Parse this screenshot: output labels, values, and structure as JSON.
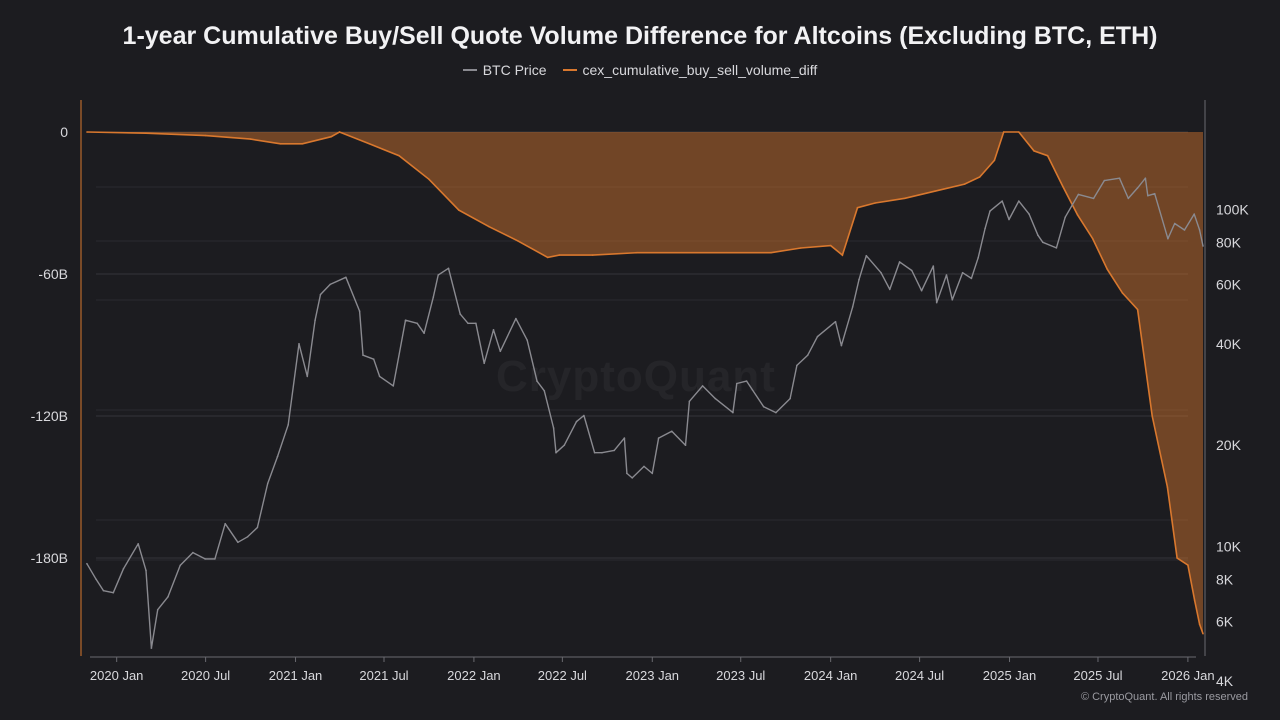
{
  "chart_data": {
    "type": "line",
    "title": "1-year Cumulative Buy/Sell Quote Volume Difference for Altcoins (Excluding BTC, ETH)",
    "legend_position": "top-center",
    "grid": true,
    "x_tick_labels": [
      "2020 Jan",
      "2020 Jul",
      "2021 Jan",
      "2021 Jul",
      "2022 Jan",
      "2022 Jul",
      "2023 Jan",
      "2023 Jul",
      "2024 Jan",
      "2024 Jul",
      "2025 Jan",
      "2025 Jul",
      "2026 Jan"
    ],
    "xlim": [
      "2019-10-20",
      "2026-02-05"
    ],
    "y_left": {
      "ylim": [
        -210,
        6
      ],
      "ticks": [
        0,
        -60,
        -120,
        -180
      ],
      "tick_labels": [
        "0",
        "-60B",
        "-120B",
        "-180B"
      ]
    },
    "y_right": {
      "scale": "log",
      "ylim": [
        4000,
        170000
      ],
      "ticks": [
        100000,
        80000,
        60000,
        40000,
        20000,
        10000,
        8000,
        6000,
        4000
      ],
      "tick_labels": [
        "100K",
        "80K",
        "60K",
        "40K",
        "20K",
        "10K",
        "8K",
        "6K",
        "4K"
      ]
    },
    "series": [
      {
        "name": "BTC Price",
        "color": "#8a8a90",
        "axis": "right",
        "x": [
          "2019-11-01",
          "2019-11-20",
          "2019-12-05",
          "2019-12-25",
          "2020-01-15",
          "2020-02-14",
          "2020-03-01",
          "2020-03-12",
          "2020-03-25",
          "2020-04-15",
          "2020-05-10",
          "2020-06-05",
          "2020-06-30",
          "2020-07-20",
          "2020-08-10",
          "2020-09-05",
          "2020-09-25",
          "2020-10-15",
          "2020-11-05",
          "2020-11-25",
          "2020-12-17",
          "2021-01-08",
          "2021-01-25",
          "2021-02-10",
          "2021-02-21",
          "2021-03-13",
          "2021-04-14",
          "2021-05-12",
          "2021-05-19",
          "2021-06-10",
          "2021-06-22",
          "2021-07-20",
          "2021-08-14",
          "2021-09-07",
          "2021-09-21",
          "2021-10-10",
          "2021-10-20",
          "2021-11-10",
          "2021-12-04",
          "2021-12-20",
          "2022-01-05",
          "2022-01-22",
          "2022-02-10",
          "2022-02-24",
          "2022-03-28",
          "2022-04-20",
          "2022-05-10",
          "2022-05-25",
          "2022-06-13",
          "2022-06-18",
          "2022-07-05",
          "2022-07-30",
          "2022-08-14",
          "2022-09-05",
          "2022-09-20",
          "2022-10-15",
          "2022-11-05",
          "2022-11-10",
          "2022-11-21",
          "2022-12-15",
          "2023-01-01",
          "2023-01-14",
          "2023-02-10",
          "2023-03-10",
          "2023-03-18",
          "2023-04-14",
          "2023-05-10",
          "2023-06-15",
          "2023-06-23",
          "2023-07-13",
          "2023-08-17",
          "2023-09-11",
          "2023-10-10",
          "2023-10-24",
          "2023-11-15",
          "2023-12-05",
          "2024-01-11",
          "2024-01-23",
          "2024-02-15",
          "2024-02-28",
          "2024-03-14",
          "2024-04-13",
          "2024-05-01",
          "2024-05-21",
          "2024-06-15",
          "2024-07-05",
          "2024-07-29",
          "2024-08-05",
          "2024-08-25",
          "2024-09-06",
          "2024-09-27",
          "2024-10-15",
          "2024-10-29",
          "2024-11-12",
          "2024-11-22",
          "2024-12-17",
          "2024-12-31",
          "2025-01-20",
          "2025-02-10",
          "2025-02-28",
          "2025-03-10",
          "2025-04-07",
          "2025-04-25",
          "2025-05-22",
          "2025-06-22",
          "2025-07-14",
          "2025-08-14",
          "2025-09-01",
          "2025-09-20",
          "2025-10-06",
          "2025-10-11",
          "2025-10-25",
          "2025-11-21",
          "2025-12-05",
          "2025-12-25",
          "2026-01-14",
          "2026-01-25",
          "2026-02-01"
        ],
        "values": [
          8900,
          8000,
          7400,
          7300,
          8600,
          10200,
          8500,
          5000,
          6500,
          7100,
          8800,
          9600,
          9200,
          9200,
          11700,
          10300,
          10700,
          11400,
          15400,
          18500,
          23000,
          40000,
          32000,
          47000,
          56000,
          60000,
          63000,
          50000,
          37000,
          36000,
          32000,
          30000,
          47000,
          46000,
          43000,
          55000,
          64000,
          67000,
          49000,
          46000,
          46000,
          35000,
          44000,
          38000,
          47500,
          41000,
          31000,
          29000,
          22500,
          19000,
          20000,
          23500,
          24500,
          19000,
          19000,
          19300,
          21000,
          16500,
          16000,
          17300,
          16500,
          21000,
          22000,
          20000,
          27000,
          30000,
          27500,
          25000,
          30500,
          31000,
          26000,
          25000,
          27500,
          34500,
          37000,
          42000,
          46500,
          39500,
          51500,
          62000,
          73000,
          65000,
          58000,
          70000,
          66000,
          57500,
          68000,
          53000,
          64000,
          54000,
          65000,
          62500,
          72000,
          88000,
          99000,
          106000,
          93500,
          106000,
          97000,
          84000,
          80000,
          77000,
          95000,
          111000,
          108000,
          122000,
          124000,
          108000,
          116000,
          124000,
          110000,
          111500,
          82000,
          91000,
          87000,
          97000,
          87000,
          78000
        ]
      },
      {
        "name": "cex_cumulative_buy_sell_volume_diff",
        "color": "#d9782e",
        "axis": "left",
        "unit": "B",
        "x": [
          "2019-11-01",
          "2020-03-01",
          "2020-07-01",
          "2020-10-01",
          "2020-12-01",
          "2021-01-15",
          "2021-03-15",
          "2021-04-01",
          "2021-06-01",
          "2021-08-01",
          "2021-10-01",
          "2021-12-01",
          "2022-02-01",
          "2022-04-01",
          "2022-06-01",
          "2022-06-25",
          "2022-09-01",
          "2022-12-01",
          "2023-03-01",
          "2023-06-01",
          "2023-09-01",
          "2023-11-01",
          "2024-01-01",
          "2024-01-25",
          "2024-02-25",
          "2024-04-01",
          "2024-06-01",
          "2024-08-01",
          "2024-10-01",
          "2024-11-01",
          "2024-12-01",
          "2024-12-20",
          "2025-01-20",
          "2025-02-20",
          "2025-03-20",
          "2025-04-20",
          "2025-05-20",
          "2025-06-20",
          "2025-07-20",
          "2025-08-20",
          "2025-09-20",
          "2025-10-20",
          "2025-11-20",
          "2025-12-10",
          "2026-01-01",
          "2026-01-15",
          "2026-01-25",
          "2026-02-01"
        ],
        "values": [
          0,
          -0.5,
          -1.5,
          -3,
          -5,
          -5,
          -2,
          0,
          -5,
          -10,
          -20,
          -33,
          -40,
          -46,
          -53,
          -52,
          -52,
          -51,
          -51,
          -51,
          -51,
          -49,
          -48,
          -52,
          -32,
          -30,
          -28,
          -25,
          -22,
          -19,
          -12,
          0,
          0,
          -8,
          -10,
          -23,
          -35,
          -45,
          -58,
          -68,
          -75,
          -120,
          -150,
          -180,
          -183,
          -198,
          -208,
          -212
        ]
      }
    ]
  },
  "legend": {
    "btc_label": "BTC Price",
    "diff_label": "cex_cumulative_buy_sell_volume_diff"
  },
  "watermark": "CryptoQuant",
  "copyright": "© CryptoQuant. All rights reserved"
}
